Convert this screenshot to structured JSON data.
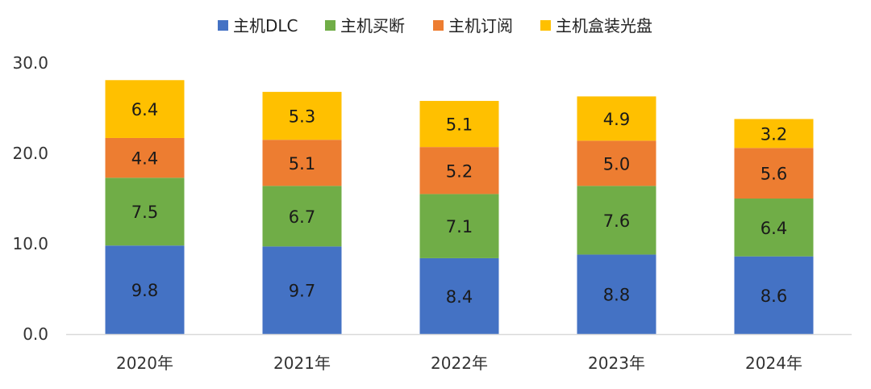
{
  "chart_data": {
    "type": "bar",
    "stacked": true,
    "categories": [
      "2020年",
      "2021年",
      "2022年",
      "2023年",
      "2024年"
    ],
    "series": [
      {
        "name": "主机DLC",
        "color": "#4472C4",
        "values": [
          9.8,
          9.7,
          8.4,
          8.8,
          8.6
        ],
        "labels": [
          "9.8",
          "9.7",
          "8.4",
          "8.8",
          "8.6"
        ]
      },
      {
        "name": "主机买断",
        "color": "#70AD47",
        "values": [
          7.5,
          6.7,
          7.1,
          7.6,
          6.4
        ],
        "labels": [
          "7.5",
          "6.7",
          "7.1",
          "7.6",
          "6.4"
        ]
      },
      {
        "name": "主机订阅",
        "color": "#ED7D31",
        "values": [
          4.4,
          5.1,
          5.2,
          5.0,
          5.6
        ],
        "labels": [
          "4.4",
          "5.1",
          "5.2",
          "5.0",
          "5.6"
        ]
      },
      {
        "name": "主机盒装光盘",
        "color": "#FFC000",
        "values": [
          6.4,
          5.3,
          5.1,
          4.9,
          3.2
        ],
        "labels": [
          "6.4",
          "5.3",
          "5.1",
          "4.9",
          "3.2"
        ]
      }
    ],
    "ylim": [
      0,
      30
    ],
    "yticks": [
      {
        "value": 0,
        "label": "0.0"
      },
      {
        "value": 10,
        "label": "10.0"
      },
      {
        "value": 20,
        "label": "20.0"
      },
      {
        "value": 30,
        "label": "30.0"
      }
    ],
    "grid": false,
    "legend_position": "top-center",
    "axis_color": "#D9D9D9"
  }
}
